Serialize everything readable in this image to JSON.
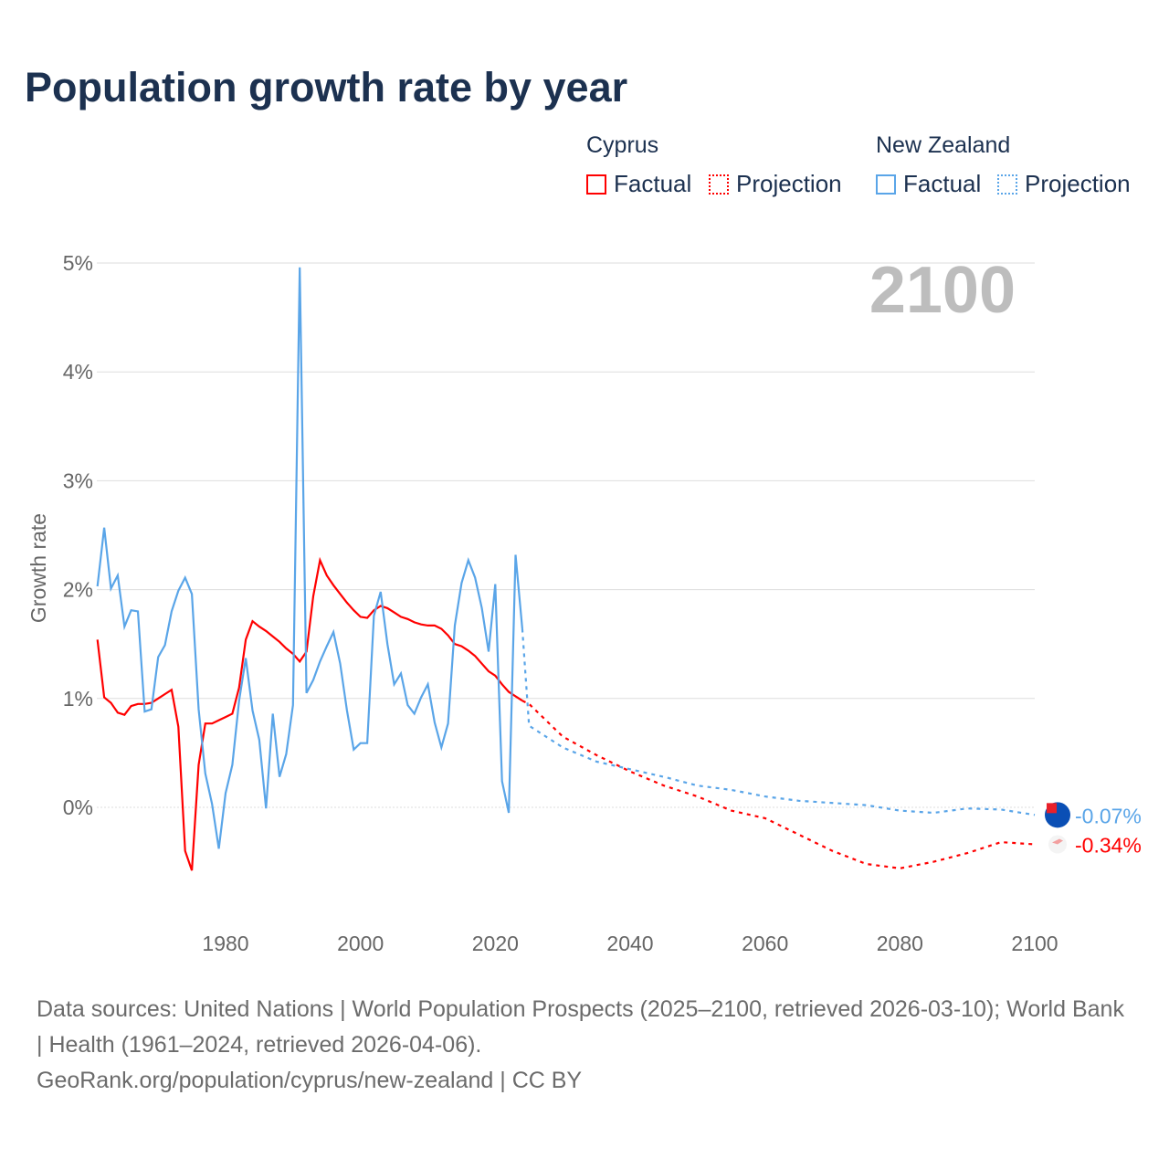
{
  "title": "Population growth rate by year",
  "legend": {
    "groups": [
      {
        "name": "Cyprus",
        "items": [
          "Factual",
          "Projection"
        ],
        "color": "#ff0000"
      },
      {
        "name": "New Zealand",
        "items": [
          "Factual",
          "Projection"
        ],
        "color": "#5aa5e8"
      }
    ]
  },
  "year_label": "2100",
  "footer": {
    "sources": "Data sources: United Nations | World Population Prospects (2025–2100, retrieved 2026-03-10); World Bank | Health (1961–2024, retrieved 2026-04-06).",
    "credit": "GeoRank.org/population/cyprus/new-zealand | CC BY"
  },
  "chart_data": {
    "type": "line",
    "title": "Population growth rate by year",
    "ylabel": "Growth rate",
    "xlabel": "",
    "xlim": [
      1961,
      2100
    ],
    "ylim": [
      -0.9,
      5.1
    ],
    "xticks": [
      "1980",
      "2000",
      "2020",
      "2040",
      "2060",
      "2080",
      "2100"
    ],
    "yticks": [
      "0%",
      "1%",
      "2%",
      "3%",
      "4%",
      "5%"
    ],
    "grid": true,
    "legend_position": "top-right",
    "series": [
      {
        "name": "Cyprus Factual",
        "color": "#ff0000",
        "dash": false,
        "x_start": 1961,
        "values": [
          1.54,
          1.01,
          0.96,
          0.87,
          0.85,
          0.93,
          0.95,
          0.95,
          0.96,
          1.0,
          1.04,
          1.08,
          0.74,
          -0.4,
          -0.58,
          0.39,
          0.77,
          0.77,
          0.8,
          0.83,
          0.86,
          1.1,
          1.54,
          1.71,
          1.66,
          1.62,
          1.57,
          1.52,
          1.46,
          1.41,
          1.34,
          1.43,
          1.94,
          2.27,
          2.13,
          2.04,
          1.96,
          1.88,
          1.81,
          1.75,
          1.74,
          1.81,
          1.85,
          1.83,
          1.79,
          1.75,
          1.73,
          1.7,
          1.68,
          1.67,
          1.67,
          1.64,
          1.58,
          1.5,
          1.48,
          1.44,
          1.39,
          1.32,
          1.25,
          1.21,
          1.13,
          1.06,
          1.02,
          0.98
        ]
      },
      {
        "name": "Cyprus Projection",
        "color": "#ff0000",
        "dash": true,
        "x": [
          2024,
          2025,
          2030,
          2035,
          2040,
          2045,
          2050,
          2055,
          2060,
          2065,
          2070,
          2075,
          2080,
          2085,
          2090,
          2095,
          2100
        ],
        "values": [
          0.98,
          0.95,
          0.65,
          0.48,
          0.33,
          0.2,
          0.1,
          -0.03,
          -0.1,
          -0.25,
          -0.4,
          -0.52,
          -0.56,
          -0.5,
          -0.42,
          -0.32,
          -0.34
        ]
      },
      {
        "name": "New Zealand Factual",
        "color": "#5aa5e8",
        "dash": false,
        "x_start": 1961,
        "values": [
          2.03,
          2.57,
          2.01,
          2.13,
          1.66,
          1.81,
          1.8,
          0.88,
          0.9,
          1.38,
          1.49,
          1.8,
          1.99,
          2.11,
          1.96,
          0.9,
          0.31,
          0.03,
          -0.38,
          0.13,
          0.39,
          0.98,
          1.37,
          0.89,
          0.62,
          -0.01,
          0.86,
          0.28,
          0.49,
          0.94,
          4.96,
          1.05,
          1.17,
          1.34,
          1.48,
          1.61,
          1.32,
          0.89,
          0.53,
          0.59,
          0.59,
          1.76,
          1.98,
          1.5,
          1.13,
          1.23,
          0.94,
          0.86,
          1.01,
          1.13,
          0.78,
          0.55,
          0.77,
          1.67,
          2.06,
          2.27,
          2.11,
          1.83,
          1.43,
          2.05,
          0.24,
          -0.05,
          2.32,
          1.64
        ]
      },
      {
        "name": "New Zealand Projection",
        "color": "#5aa5e8",
        "dash": true,
        "x": [
          2024,
          2025,
          2030,
          2035,
          2040,
          2045,
          2050,
          2055,
          2060,
          2065,
          2070,
          2075,
          2080,
          2085,
          2090,
          2095,
          2100
        ],
        "values": [
          1.64,
          0.75,
          0.55,
          0.42,
          0.35,
          0.28,
          0.2,
          0.16,
          0.1,
          0.06,
          0.04,
          0.02,
          -0.03,
          -0.05,
          -0.01,
          -0.02,
          -0.07
        ]
      }
    ],
    "end_labels": [
      {
        "country": "New Zealand",
        "text": "-0.07%",
        "value": -0.07,
        "color": "#5aa5e8"
      },
      {
        "country": "Cyprus",
        "text": "-0.34%",
        "value": -0.34,
        "color": "#ff0000"
      }
    ]
  }
}
